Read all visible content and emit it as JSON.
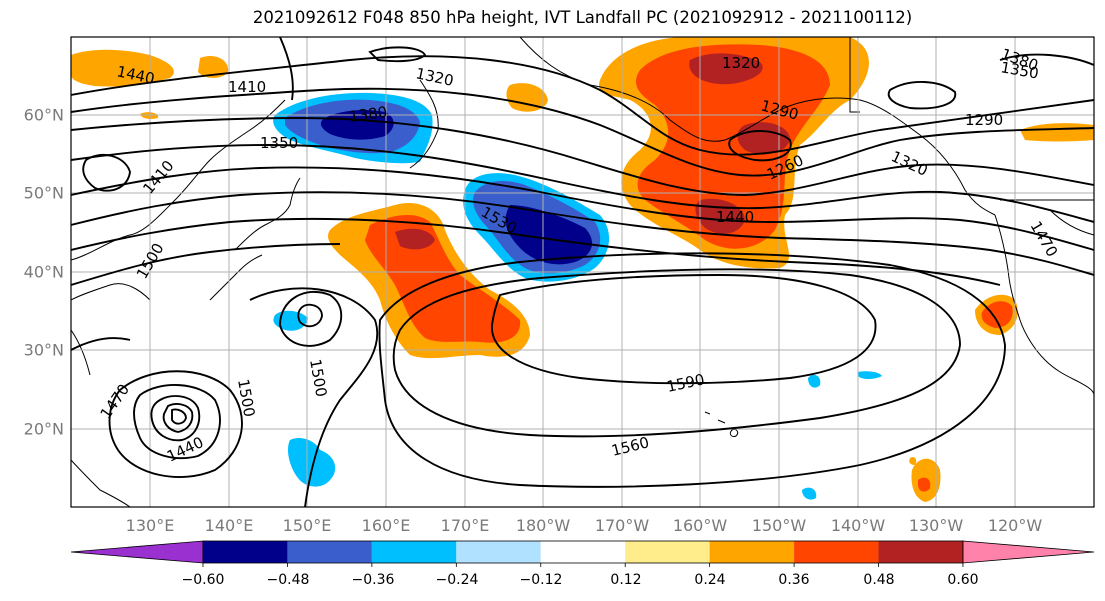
{
  "title": "2021092612 F048 850 hPa height, IVT Landfall PC (2021092912 - 2021100112)",
  "map": {
    "lat_labels": [
      "60°N",
      "50°N",
      "40°N",
      "30°N",
      "20°N"
    ],
    "lon_labels": [
      "130°E",
      "140°E",
      "150°E",
      "160°E",
      "170°E",
      "180°W",
      "170°W",
      "160°W",
      "150°W",
      "140°W",
      "130°W",
      "120°W"
    ],
    "contour_labels": [
      "1440",
      "1410",
      "1320",
      "1380",
      "1350",
      "1410",
      "1320",
      "1290",
      "1380",
      "1350",
      "1290",
      "1260",
      "1320",
      "1530",
      "1440",
      "1470",
      "1500",
      "1500",
      "1590",
      "1560",
      "1470",
      "1500",
      "1440"
    ]
  },
  "colorbar": {
    "ticks": [
      "−0.60",
      "−0.48",
      "−0.36",
      "−0.24",
      "−0.12",
      "0.12",
      "0.24",
      "0.36",
      "0.48",
      "0.60"
    ],
    "colors": [
      "#9b30d0",
      "#00008b",
      "#3a5fcd",
      "#00bfff",
      "#b0e2ff",
      "#ffffff",
      "#ffec8b",
      "#ffa500",
      "#ff4500",
      "#b22222",
      "#ff82ab"
    ]
  },
  "colors": {
    "orange": "#ffa500",
    "red_orange": "#ff4500",
    "dark_red": "#b22222",
    "light_yellow": "#ffec8b",
    "navy": "#00008b",
    "royal_blue": "#3a5fcd",
    "sky_blue": "#00bfff",
    "light_blue": "#b0e2ff"
  }
}
